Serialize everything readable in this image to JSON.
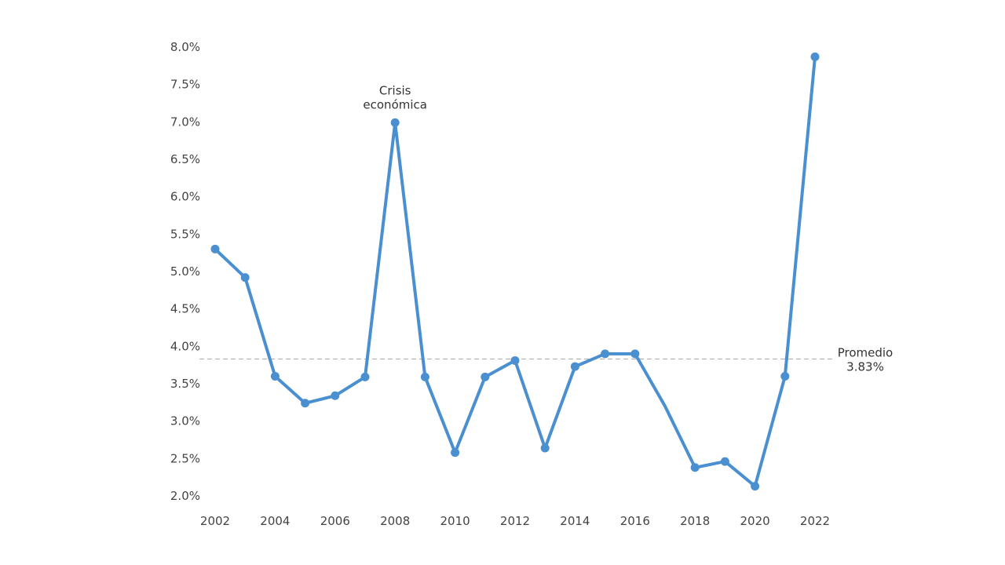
{
  "chart_data": {
    "type": "line",
    "x": [
      2002,
      2003,
      2004,
      2005,
      2006,
      2007,
      2008,
      2009,
      2010,
      2011,
      2012,
      2013,
      2014,
      2015,
      2016,
      2017,
      2018,
      2019,
      2020,
      2021,
      2022
    ],
    "series": [
      {
        "values": [
          5.3,
          4.92,
          3.6,
          3.24,
          3.34,
          3.59,
          6.99,
          3.59,
          2.58,
          3.59,
          3.81,
          2.64,
          3.73,
          3.9,
          3.9,
          3.2,
          2.38,
          2.46,
          2.13,
          3.6,
          7.87
        ],
        "color": "#4a8fcf"
      }
    ],
    "x_ticks": [
      "2002",
      "2004",
      "2006",
      "2008",
      "2010",
      "2012",
      "2014",
      "2016",
      "2018",
      "2020",
      "2022"
    ],
    "y_ticks": [
      "8.0%",
      "7.5%",
      "7.0%",
      "6.5%",
      "6.0%",
      "5.5%",
      "5.0%",
      "4.5%",
      "4.0%",
      "3.5%",
      "3.0%",
      "2.5%",
      "2.0%"
    ],
    "ylim": [
      2.0,
      8.0
    ],
    "grid": false,
    "average": {
      "value": 3.83,
      "label": "Promedio",
      "value_label": "3.83%",
      "color": "#aaaaaa"
    },
    "annotations": [
      {
        "x": 2008,
        "lines": [
          "Crisis",
          "económica"
        ]
      }
    ]
  }
}
